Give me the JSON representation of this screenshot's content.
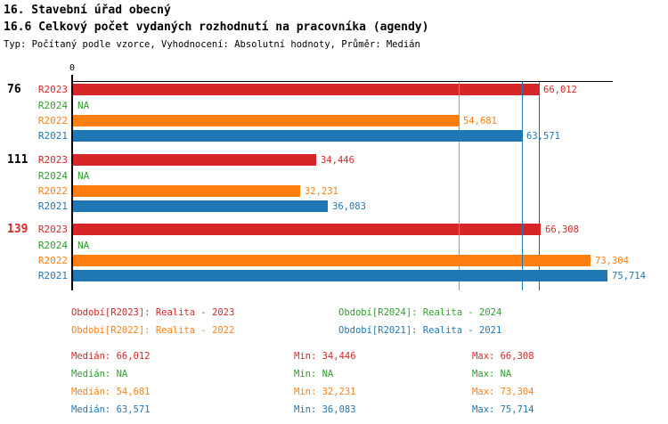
{
  "page": {
    "title_line1": "16. Stavební úřad obecný",
    "title_line2": "16.6 Celkový počet vydaných rozhodnutí na pracovníka (agendy)",
    "subtitle": "Typ: Počítaný podle vzorce, Vyhodnocení: Absolutní hodnoty, Průměr: Medián"
  },
  "palette": {
    "R2023": "#d62728",
    "R2024": "#2ca02c",
    "R2022": "#ff7f0e",
    "R2021": "#1f77b4",
    "axis": "#000000",
    "highlight_group": "#d62728"
  },
  "chart_data": {
    "type": "bar",
    "orientation": "horizontal",
    "x_axis": {
      "zero_label": "0",
      "xmax_estimate": 76500,
      "grid": "median-lines-only"
    },
    "series_order": [
      "R2023",
      "R2024",
      "R2022",
      "R2021"
    ],
    "groups": [
      {
        "label": "76",
        "label_color": "#000000",
        "values": [
          {
            "series": "R2023",
            "value": 66012,
            "display": "66,012"
          },
          {
            "series": "R2024",
            "value": null,
            "display": "NA"
          },
          {
            "series": "R2022",
            "value": 54681,
            "display": "54,681"
          },
          {
            "series": "R2021",
            "value": 63571,
            "display": "63,571"
          }
        ]
      },
      {
        "label": "111",
        "label_color": "#000000",
        "values": [
          {
            "series": "R2023",
            "value": 34446,
            "display": "34,446"
          },
          {
            "series": "R2024",
            "value": null,
            "display": "NA"
          },
          {
            "series": "R2022",
            "value": 32231,
            "display": "32,231"
          },
          {
            "series": "R2021",
            "value": 36083,
            "display": "36,083"
          }
        ]
      },
      {
        "label": "139",
        "label_color": "#d62728",
        "values": [
          {
            "series": "R2023",
            "value": 66308,
            "display": "66,308"
          },
          {
            "series": "R2024",
            "value": null,
            "display": "NA"
          },
          {
            "series": "R2022",
            "value": 73304,
            "display": "73,304"
          },
          {
            "series": "R2021",
            "value": 75714,
            "display": "75,714"
          }
        ]
      }
    ],
    "median_lines": [
      {
        "series": "R2023",
        "value": 66012
      },
      {
        "series": "R2022",
        "value": 54681
      },
      {
        "series": "R2021",
        "value": 63571
      }
    ]
  },
  "legend": {
    "items": [
      {
        "series": "R2023",
        "label": "Období[R2023]: Realita - 2023"
      },
      {
        "series": "R2024",
        "label": "Období[R2024]: Realita - 2024"
      },
      {
        "series": "R2022",
        "label": "Období[R2022]: Realita - 2022"
      },
      {
        "series": "R2021",
        "label": "Období[R2021]: Realita - 2021"
      }
    ]
  },
  "stats": {
    "rows": [
      {
        "series": "R2023",
        "median_text": "Medián: 66,012",
        "min_text": "Min: 34,446",
        "max_text": "Max: 66,308"
      },
      {
        "series": "R2024",
        "median_text": "Medián: NA",
        "min_text": "Min: NA",
        "max_text": "Max: NA"
      },
      {
        "series": "R2022",
        "median_text": "Medián: 54,681",
        "min_text": "Min: 32,231",
        "max_text": "Max: 73,304"
      },
      {
        "series": "R2021",
        "median_text": "Medián: 63,571",
        "min_text": "Min: 36,083",
        "max_text": "Max: 75,714"
      }
    ]
  }
}
